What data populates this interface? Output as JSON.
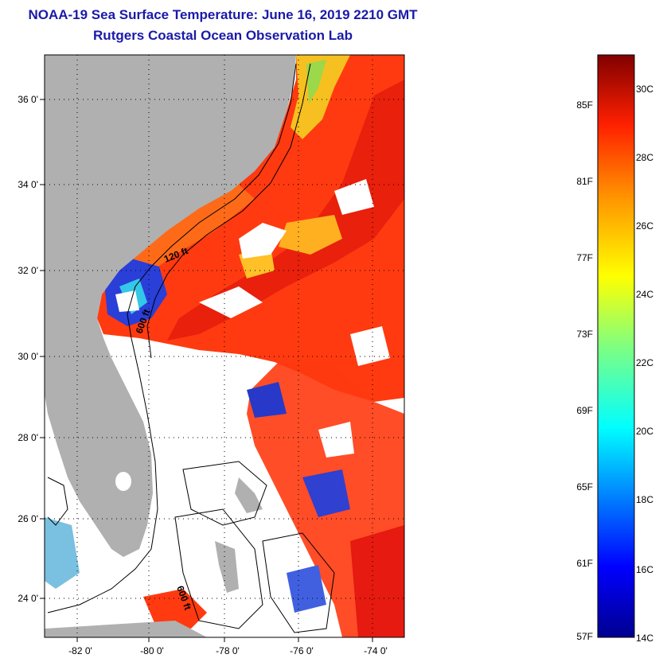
{
  "title": {
    "line1": "NOAA-19 Sea Surface Temperature:  June 16, 2019 2210 GMT",
    "line2": "Rutgers Coastal Ocean Observation Lab"
  },
  "axes": {
    "lat_labels": [
      "36 0'",
      "34 0'",
      "32 0'",
      "30 0'",
      "28 0'",
      "26 0'",
      "24 0'"
    ],
    "lon_labels": [
      "-82 0'",
      "-80 0'",
      "-78 0'",
      "-76 0'",
      "-74 0'"
    ]
  },
  "contour_labels": {
    "c120": "120 ft",
    "c600a": "600 ft",
    "c600b": "600 ft"
  },
  "colorbar": {
    "f_labels": [
      "85F",
      "81F",
      "77F",
      "73F",
      "69F",
      "65F",
      "61F",
      "57F"
    ],
    "c_labels": [
      "30C",
      "28C",
      "26C",
      "24C",
      "22C",
      "20C",
      "18C",
      "16C",
      "14C"
    ]
  },
  "colors": {
    "title": "#1a1aa8",
    "land": "#b0b0b0",
    "warm": "#ff3a10",
    "hot": "#e61a10"
  }
}
